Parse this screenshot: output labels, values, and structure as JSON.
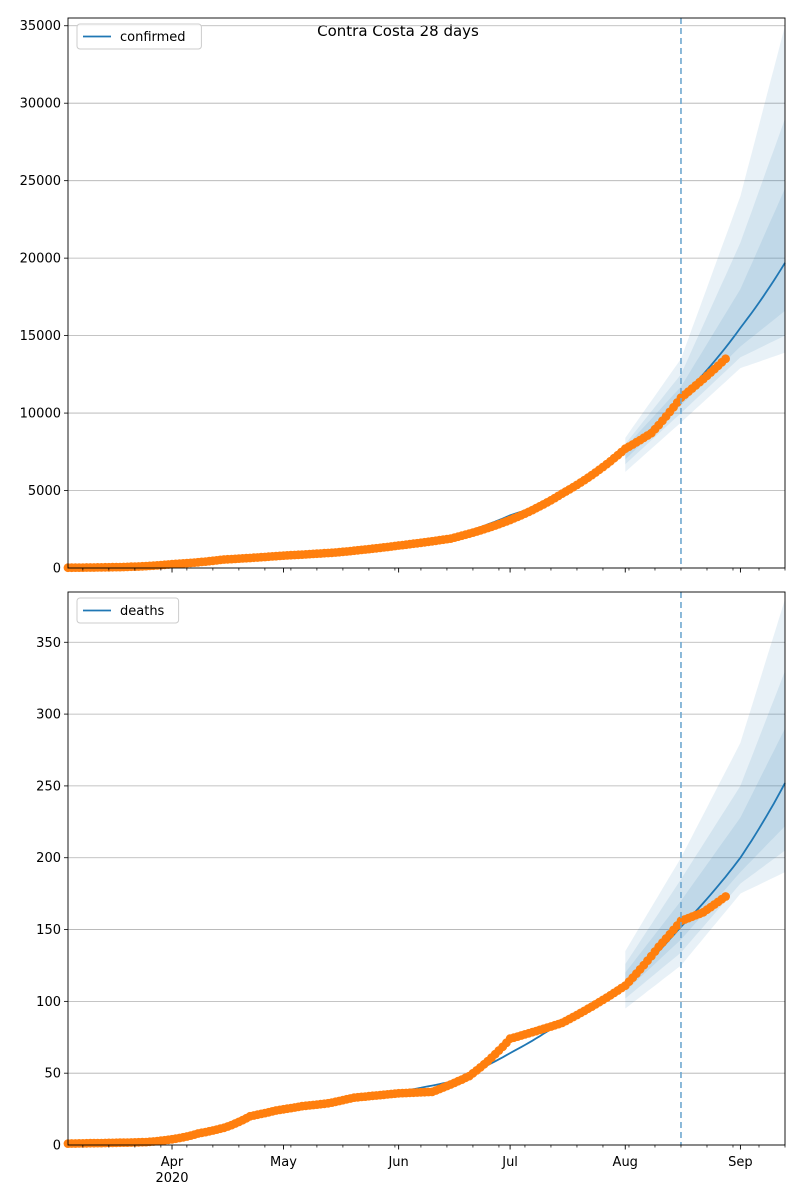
{
  "title": "Contra Costa 28 days",
  "colors": {
    "model": "#1f77b4",
    "observed": "#ff7f0e",
    "band": "#1f77b4",
    "grid": "#b0b0b0",
    "forecast_line": "#6fa8d0"
  },
  "x_axis": {
    "tick_labels": [
      "Apr",
      "May",
      "Jun",
      "Jul",
      "Aug",
      "Sep"
    ],
    "year_label": "2020",
    "start": "2020-03-04",
    "end": "2020-09-13"
  },
  "forecast_start": "2020-08-16",
  "chart_data": [
    {
      "type": "line",
      "series_name": "confirmed",
      "ylim": [
        0,
        35500
      ],
      "yticks": [
        0,
        5000,
        10000,
        15000,
        20000,
        25000,
        30000,
        35000
      ],
      "grid": "horizontal",
      "legend": "top-left",
      "model_curve": [
        [
          "2020-03-04",
          40
        ],
        [
          "2020-03-15",
          80
        ],
        [
          "2020-04-01",
          300
        ],
        [
          "2020-04-15",
          600
        ],
        [
          "2020-05-01",
          850
        ],
        [
          "2020-05-15",
          1100
        ],
        [
          "2020-06-01",
          1500
        ],
        [
          "2020-06-15",
          2050
        ],
        [
          "2020-07-01",
          3400
        ],
        [
          "2020-07-15",
          4650
        ],
        [
          "2020-08-01",
          7500
        ],
        [
          "2020-08-16",
          11000
        ],
        [
          "2020-09-01",
          15500
        ],
        [
          "2020-09-13",
          19700
        ]
      ],
      "bands": [
        {
          "level": "outer",
          "points": [
            [
              "2020-08-01",
              6200,
              8400
            ],
            [
              "2020-08-16",
              9400,
              13500
            ],
            [
              "2020-09-01",
              12900,
              24000
            ],
            [
              "2020-09-13",
              13900,
              35000
            ]
          ]
        },
        {
          "level": "middle",
          "points": [
            [
              "2020-08-01",
              6700,
              8000
            ],
            [
              "2020-08-16",
              10000,
              12500
            ],
            [
              "2020-09-01",
              13600,
              21000
            ],
            [
              "2020-09-13",
              15000,
              29000
            ]
          ]
        },
        {
          "level": "inner",
          "points": [
            [
              "2020-08-01",
              7000,
              7800
            ],
            [
              "2020-08-16",
              10500,
              11700
            ],
            [
              "2020-09-01",
              14300,
              18000
            ],
            [
              "2020-09-13",
              16600,
              24500
            ]
          ]
        }
      ],
      "observed": [
        [
          "2020-03-04",
          20
        ],
        [
          "2020-03-18",
          60
        ],
        [
          "2020-04-01",
          250
        ],
        [
          "2020-04-15",
          550
        ],
        [
          "2020-05-01",
          800
        ],
        [
          "2020-05-15",
          1000
        ],
        [
          "2020-06-01",
          1450
        ],
        [
          "2020-06-15",
          1900
        ],
        [
          "2020-07-01",
          3100
        ],
        [
          "2020-07-15",
          4800
        ],
        [
          "2020-08-01",
          7700
        ],
        [
          "2020-08-08",
          8700
        ],
        [
          "2020-08-16",
          11000
        ],
        [
          "2020-08-22",
          12200
        ],
        [
          "2020-08-28",
          13500
        ]
      ]
    },
    {
      "type": "line",
      "series_name": "deaths",
      "ylim": [
        0,
        385
      ],
      "yticks": [
        0,
        50,
        100,
        150,
        200,
        250,
        300,
        350
      ],
      "grid": "horizontal",
      "legend": "top-left",
      "model_curve": [
        [
          "2020-03-04",
          1
        ],
        [
          "2020-03-25",
          3
        ],
        [
          "2020-04-15",
          14
        ],
        [
          "2020-05-01",
          25
        ],
        [
          "2020-05-15",
          31
        ],
        [
          "2020-06-01",
          37
        ],
        [
          "2020-06-15",
          44
        ],
        [
          "2020-07-01",
          64
        ],
        [
          "2020-07-15",
          86
        ],
        [
          "2020-08-01",
          113
        ],
        [
          "2020-08-16",
          152
        ],
        [
          "2020-09-01",
          200
        ],
        [
          "2020-09-13",
          252
        ]
      ],
      "bands": [
        {
          "level": "outer",
          "points": [
            [
              "2020-08-01",
              95,
              135
            ],
            [
              "2020-08-16",
              125,
              200
            ],
            [
              "2020-09-01",
              175,
              280
            ],
            [
              "2020-09-13",
              190,
              380
            ]
          ]
        },
        {
          "level": "middle",
          "points": [
            [
              "2020-08-01",
              102,
              126
            ],
            [
              "2020-08-16",
              134,
              185
            ],
            [
              "2020-09-01",
              182,
              250
            ],
            [
              "2020-09-13",
              205,
              330
            ]
          ]
        },
        {
          "level": "inner",
          "points": [
            [
              "2020-08-01",
              107,
              120
            ],
            [
              "2020-08-16",
              143,
              170
            ],
            [
              "2020-09-01",
              190,
              228
            ],
            [
              "2020-09-13",
              222,
              290
            ]
          ]
        }
      ],
      "observed": [
        [
          "2020-03-04",
          1
        ],
        [
          "2020-03-25",
          2
        ],
        [
          "2020-04-01",
          4
        ],
        [
          "2020-04-08",
          8
        ],
        [
          "2020-04-15",
          12
        ],
        [
          "2020-04-22",
          20
        ],
        [
          "2020-04-29",
          24
        ],
        [
          "2020-05-06",
          27
        ],
        [
          "2020-05-13",
          29
        ],
        [
          "2020-05-20",
          33
        ],
        [
          "2020-06-01",
          36
        ],
        [
          "2020-06-10",
          37
        ],
        [
          "2020-06-20",
          48
        ],
        [
          "2020-07-01",
          74
        ],
        [
          "2020-07-15",
          85
        ],
        [
          "2020-08-01",
          111
        ],
        [
          "2020-08-10",
          138
        ],
        [
          "2020-08-16",
          156
        ],
        [
          "2020-08-22",
          162
        ],
        [
          "2020-08-28",
          173
        ]
      ]
    }
  ]
}
